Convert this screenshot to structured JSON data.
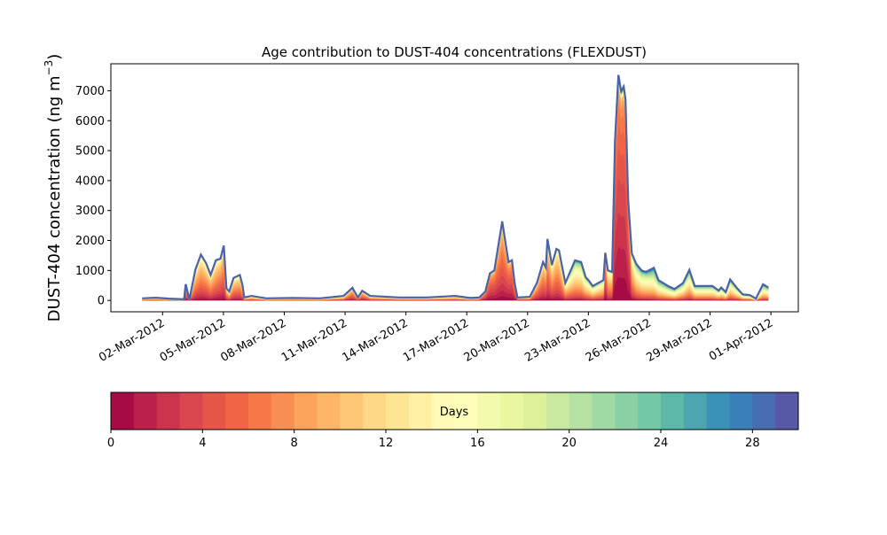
{
  "chart_data": {
    "type": "area",
    "stacked": true,
    "title": "Age contribution to DUST-404 concentrations (FLEXDUST)",
    "ylabel_main": "DUST-404 concentration (ng m",
    "ylabel_sup": "−3",
    "ylabel_close": ")",
    "ylim": [
      -380,
      7900
    ],
    "yticks": [
      0,
      1000,
      2000,
      3000,
      4000,
      5000,
      6000,
      7000
    ],
    "ytick_labels": [
      "0",
      "1000",
      "2000",
      "3000",
      "4000",
      "5000",
      "6000",
      "7000"
    ],
    "x_units": "days since 01-Mar-2012 00:00",
    "xlim": [
      -1.55,
      32.35
    ],
    "xticks": [
      1,
      4,
      7,
      10,
      13,
      16,
      19,
      22,
      25,
      28,
      31
    ],
    "xtick_labels": [
      "02-Mar-2012",
      "05-Mar-2012",
      "08-Mar-2012",
      "11-Mar-2012",
      "14-Mar-2012",
      "17-Mar-2012",
      "20-Mar-2012",
      "23-Mar-2012",
      "26-Mar-2012",
      "29-Mar-2012",
      "01-Apr-2012"
    ],
    "series_note": "each point: [time (days), total concentration (ng m-3), approx. mean age (days)]",
    "points": [
      [
        0.0,
        70,
        10
      ],
      [
        0.66,
        90,
        10
      ],
      [
        1.31,
        60,
        10
      ],
      [
        2.06,
        40,
        10
      ],
      [
        2.14,
        540,
        5
      ],
      [
        2.32,
        30,
        8
      ],
      [
        2.62,
        1030,
        7
      ],
      [
        2.89,
        1530,
        7
      ],
      [
        3.15,
        1240,
        7
      ],
      [
        3.37,
        850,
        7
      ],
      [
        3.63,
        1340,
        7
      ],
      [
        3.85,
        1390,
        6
      ],
      [
        4.02,
        1830,
        6
      ],
      [
        4.15,
        400,
        7
      ],
      [
        4.29,
        300,
        8
      ],
      [
        4.5,
        750,
        7
      ],
      [
        4.81,
        850,
        7
      ],
      [
        4.94,
        500,
        7
      ],
      [
        5.03,
        100,
        9
      ],
      [
        5.38,
        150,
        9
      ],
      [
        6.12,
        70,
        10
      ],
      [
        7.43,
        80,
        10
      ],
      [
        8.75,
        70,
        10
      ],
      [
        9.93,
        150,
        9
      ],
      [
        10.36,
        420,
        6
      ],
      [
        10.63,
        100,
        8
      ],
      [
        10.84,
        320,
        6
      ],
      [
        11.24,
        150,
        8
      ],
      [
        12.68,
        100,
        9
      ],
      [
        14.0,
        100,
        9
      ],
      [
        15.43,
        150,
        9
      ],
      [
        16.18,
        80,
        9
      ],
      [
        16.62,
        100,
        8
      ],
      [
        16.92,
        300,
        4
      ],
      [
        17.14,
        900,
        4
      ],
      [
        17.36,
        1000,
        4
      ],
      [
        17.75,
        2640,
        5
      ],
      [
        18.06,
        1280,
        4
      ],
      [
        18.23,
        1340,
        4
      ],
      [
        18.36,
        580,
        4
      ],
      [
        18.5,
        100,
        7
      ],
      [
        19.11,
        120,
        8
      ],
      [
        19.46,
        580,
        6
      ],
      [
        19.76,
        1280,
        6
      ],
      [
        19.9,
        1090,
        6
      ],
      [
        19.98,
        2050,
        6
      ],
      [
        20.2,
        1180,
        7
      ],
      [
        20.42,
        1720,
        7
      ],
      [
        20.55,
        1670,
        7
      ],
      [
        20.86,
        580,
        9
      ],
      [
        21.34,
        1340,
        11
      ],
      [
        21.64,
        1280,
        11
      ],
      [
        21.86,
        780,
        11
      ],
      [
        22.0,
        680,
        11
      ],
      [
        22.21,
        480,
        11
      ],
      [
        22.74,
        680,
        10
      ],
      [
        22.83,
        1590,
        4
      ],
      [
        22.96,
        1000,
        8
      ],
      [
        23.17,
        950,
        8
      ],
      [
        23.31,
        5300,
        3
      ],
      [
        23.48,
        7530,
        3
      ],
      [
        23.61,
        6990,
        3
      ],
      [
        23.74,
        7140,
        3
      ],
      [
        23.83,
        6700,
        3
      ],
      [
        23.96,
        3360,
        3
      ],
      [
        24.14,
        1570,
        8
      ],
      [
        24.35,
        1230,
        11
      ],
      [
        24.62,
        1000,
        12
      ],
      [
        24.84,
        950,
        12
      ],
      [
        25.23,
        1090,
        14
      ],
      [
        25.45,
        680,
        13
      ],
      [
        25.93,
        480,
        13
      ],
      [
        26.24,
        380,
        13
      ],
      [
        26.67,
        580,
        12
      ],
      [
        26.98,
        1020,
        12
      ],
      [
        27.24,
        480,
        12
      ],
      [
        28.12,
        480,
        12
      ],
      [
        28.42,
        330,
        12
      ],
      [
        28.55,
        430,
        12
      ],
      [
        28.77,
        280,
        12
      ],
      [
        28.99,
        700,
        12
      ],
      [
        29.3,
        430,
        12
      ],
      [
        29.61,
        200,
        12
      ],
      [
        29.95,
        180,
        12
      ],
      [
        30.26,
        60,
        12
      ],
      [
        30.61,
        540,
        13
      ],
      [
        30.87,
        430,
        13
      ]
    ],
    "colorbar": {
      "label": "Days",
      "range": [
        0,
        30
      ],
      "bins": 30,
      "ticks": [
        0,
        4,
        8,
        12,
        16,
        20,
        24,
        28
      ],
      "tick_labels": [
        "0",
        "4",
        "8",
        "12",
        "16",
        "20",
        "24",
        "28"
      ],
      "colormap": "Spectral",
      "colormap_stops": [
        "#9e0142",
        "#d53e4f",
        "#f46d43",
        "#fdae61",
        "#fee08b",
        "#ffffbf",
        "#e6f598",
        "#abdda4",
        "#66c2a5",
        "#3288bd",
        "#5e4fa2"
      ]
    },
    "outline_color": "#4a62a8",
    "grid": false,
    "legend": "colorbar-bottom"
  }
}
